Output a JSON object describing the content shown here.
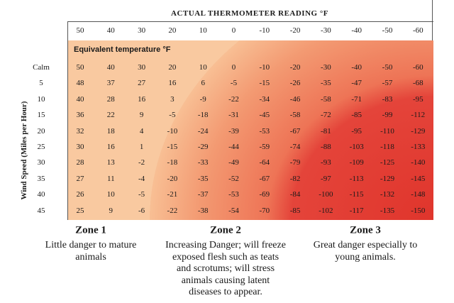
{
  "header": {
    "title": "ACTUAL THERMOMETER READING °F",
    "subtitle": "Equivalent temperature °F",
    "columns": [
      "50",
      "40",
      "30",
      "20",
      "10",
      "0",
      "-10",
      "-20",
      "-30",
      "-40",
      "-50",
      "-60"
    ]
  },
  "row_axis_label": "Wind Speed (Miles per Hour)",
  "table": {
    "rows": [
      {
        "label": "Calm",
        "cells": [
          "50",
          "40",
          "30",
          "20",
          "10",
          "0",
          "-10",
          "-20",
          "-30",
          "-40",
          "-50",
          "-60"
        ]
      },
      {
        "label": "5",
        "cells": [
          "48",
          "37",
          "27",
          "16",
          "6",
          "-5",
          "-15",
          "-26",
          "-35",
          "-47",
          "-57",
          "-68"
        ]
      },
      {
        "label": "10",
        "cells": [
          "40",
          "28",
          "16",
          "3",
          "-9",
          "-22",
          "-34",
          "-46",
          "-58",
          "-71",
          "-83",
          "-95"
        ]
      },
      {
        "label": "15",
        "cells": [
          "36",
          "22",
          "9",
          "-5",
          "-18",
          "-31",
          "-45",
          "-58",
          "-72",
          "-85",
          "-99",
          "-112"
        ]
      },
      {
        "label": "20",
        "cells": [
          "32",
          "18",
          "4",
          "-10",
          "-24",
          "-39",
          "-53",
          "-67",
          "-81",
          "-95",
          "-110",
          "-129"
        ]
      },
      {
        "label": "25",
        "cells": [
          "30",
          "16",
          "1",
          "-15",
          "-29",
          "-44",
          "-59",
          "-74",
          "-88",
          "-103",
          "-118",
          "-133"
        ]
      },
      {
        "label": "30",
        "cells": [
          "28",
          "13",
          "-2",
          "-18",
          "-33",
          "-49",
          "-64",
          "-79",
          "-93",
          "-109",
          "-125",
          "-140"
        ]
      },
      {
        "label": "35",
        "cells": [
          "27",
          "11",
          "-4",
          "-20",
          "-35",
          "-52",
          "-67",
          "-82",
          "-97",
          "-113",
          "-129",
          "-145"
        ]
      },
      {
        "label": "40",
        "cells": [
          "26",
          "10",
          "-5",
          "-21",
          "-37",
          "-53",
          "-69",
          "-84",
          "-100",
          "-115",
          "-132",
          "-148"
        ]
      },
      {
        "label": "45",
        "cells": [
          "25",
          "9",
          "-6",
          "-22",
          "-38",
          "-54",
          "-70",
          "-85",
          "-102",
          "-117",
          "-135",
          "-150"
        ]
      }
    ]
  },
  "zones": [
    {
      "title": "Zone 1",
      "lines": [
        "Little danger to mature",
        "animals"
      ]
    },
    {
      "title": "Zone 2",
      "lines": [
        "Increasing Danger; will freeze",
        "exposed flesh such as teats",
        "and scrotums; will stress",
        "animals causing latent",
        "diseases to appear."
      ]
    },
    {
      "title": "Zone 3",
      "lines": [
        "Great danger especially to",
        "young animals."
      ]
    }
  ]
}
